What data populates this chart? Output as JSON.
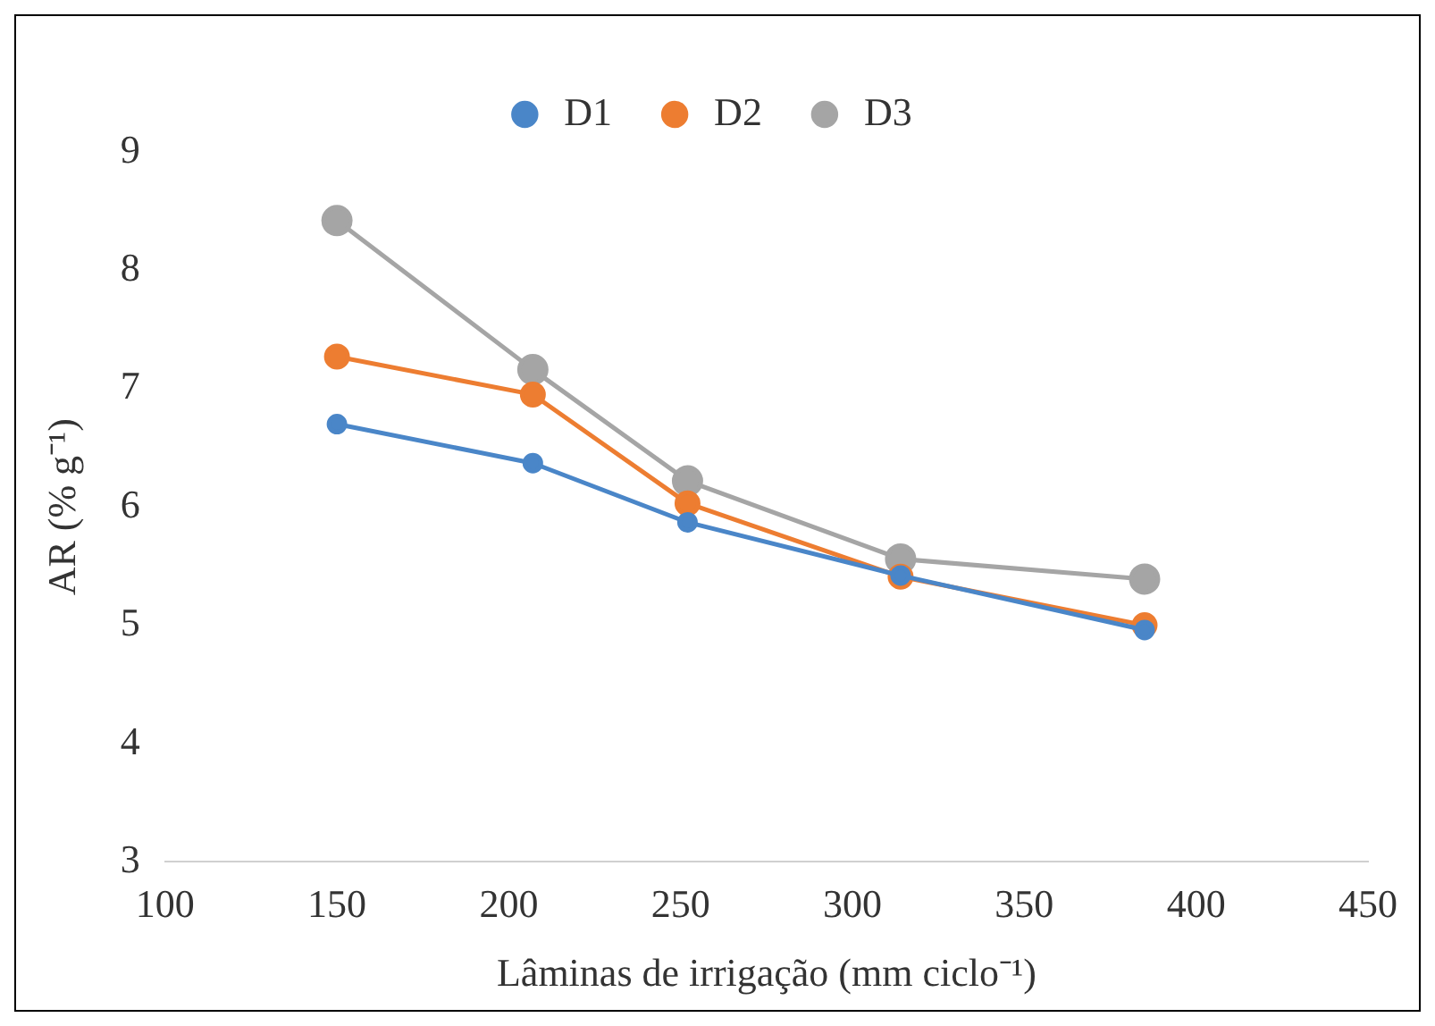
{
  "chart_data": {
    "type": "line",
    "xlabel": "Lâminas de irrigação (mm ciclo⁻¹)",
    "ylabel": "AR (% g⁻¹)",
    "xlim": [
      100,
      450
    ],
    "xticks": [
      100,
      150,
      200,
      250,
      300,
      350,
      400,
      450
    ],
    "ylim": [
      3,
      9
    ],
    "yticks": [
      3,
      4,
      5,
      6,
      7,
      8,
      9
    ],
    "x": [
      150,
      207,
      252,
      314,
      385
    ],
    "legend": "top",
    "grid": false,
    "marker": "circle",
    "series": [
      {
        "name": "D1",
        "color": "#4a86c8",
        "values": [
          6.7,
          6.37,
          5.87,
          5.42,
          4.96
        ]
      },
      {
        "name": "D2",
        "color": "#ed7d31",
        "values": [
          7.27,
          6.95,
          6.03,
          5.41,
          5.0
        ]
      },
      {
        "name": "D3",
        "color": "#a5a5a5",
        "values": [
          8.42,
          7.16,
          6.22,
          5.56,
          5.39
        ]
      }
    ]
  }
}
